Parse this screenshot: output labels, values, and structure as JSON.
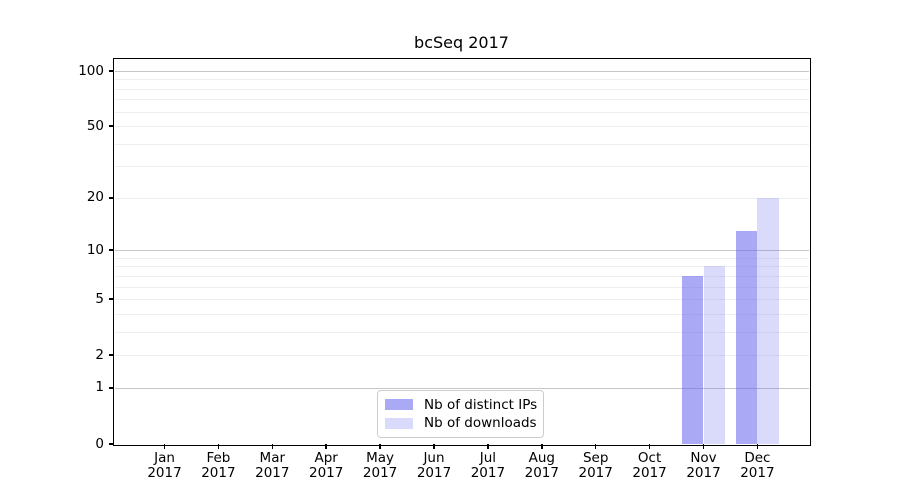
{
  "chart_data": {
    "type": "bar",
    "title": "bcSeq 2017",
    "year": "2017",
    "categories": [
      "Jan",
      "Feb",
      "Mar",
      "Apr",
      "May",
      "Jun",
      "Jul",
      "Aug",
      "Sep",
      "Oct",
      "Nov",
      "Dec"
    ],
    "series": [
      {
        "name": "Nb of distinct IPs",
        "color": "#6666ee",
        "alpha": 0.56,
        "values": [
          0,
          0,
          0,
          0,
          0,
          0,
          0,
          0,
          0,
          0,
          7,
          13
        ]
      },
      {
        "name": "Nb of downloads",
        "color": "#6666ee",
        "alpha": 0.24,
        "values": [
          0,
          0,
          0,
          0,
          0,
          0,
          0,
          0,
          0,
          0,
          8,
          20
        ]
      }
    ],
    "scale": "log1p",
    "ylim": [
      0,
      116
    ],
    "yticks": [
      0,
      1,
      2,
      5,
      10,
      20,
      50,
      100
    ],
    "gridlines": {
      "major": [
        1,
        10,
        100
      ],
      "minor": [
        2,
        3,
        4,
        5,
        6,
        7,
        8,
        9,
        20,
        30,
        40,
        50,
        60,
        70,
        80,
        90
      ]
    },
    "legend": {
      "position": "lower center"
    },
    "xlabel": "",
    "ylabel": ""
  },
  "colors": {
    "background": "#ffffff",
    "spine": "#000000",
    "grid_major": "#c6c6c6",
    "grid_minor": "#efefef",
    "text": "#000000",
    "legend_border": "#cccccc",
    "bar_distinct_ips_rendered": "#a9a9f4",
    "bar_downloads_rendered": "#dadaf8"
  }
}
